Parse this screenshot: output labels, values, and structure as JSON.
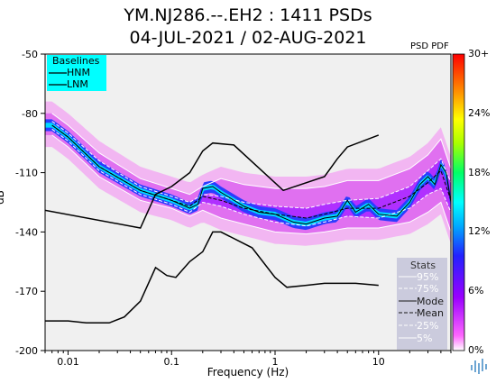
{
  "titles": {
    "line1": "YM.NJ286.--.EH2 : 1411 PSDs",
    "line2": "04-JUL-2021 / 02-AUG-2021"
  },
  "chart_data": {
    "type": "heatmap",
    "ylabel": "dB",
    "xlabel": "Frequency (Hz)",
    "pdf_label": "PSD PDF",
    "xscale": "log",
    "xlim": [
      0.006,
      50
    ],
    "ylim": [
      -200,
      -50
    ],
    "x_ticks": [
      {
        "v": 0.01,
        "label": "0.01"
      },
      {
        "v": 0.1,
        "label": "0.1"
      },
      {
        "v": 1,
        "label": "1"
      },
      {
        "v": 10,
        "label": "10"
      }
    ],
    "y_ticks": [
      {
        "v": -50,
        "label": "-50"
      },
      {
        "v": -80,
        "label": "-80"
      },
      {
        "v": -110,
        "label": "-110"
      },
      {
        "v": -140,
        "label": "-140"
      },
      {
        "v": -170,
        "label": "-170"
      },
      {
        "v": -200,
        "label": "-200"
      }
    ],
    "colorbar": {
      "ticks": [
        "30+",
        "24%",
        "18%",
        "12%",
        "6%",
        "0%"
      ]
    },
    "baselines": {
      "title": "Baselines",
      "hnm_label": "HNM",
      "lnm_label": "LNM",
      "hnm": [
        [
          0.006,
          -129
        ],
        [
          0.05,
          -138
        ],
        [
          0.07,
          -121
        ],
        [
          0.1,
          -117
        ],
        [
          0.15,
          -110
        ],
        [
          0.2,
          -99
        ],
        [
          0.25,
          -95
        ],
        [
          0.4,
          -96
        ],
        [
          1.2,
          -119
        ],
        [
          3,
          -112
        ],
        [
          4,
          -103
        ],
        [
          5,
          -97
        ],
        [
          10,
          -91
        ]
      ],
      "lnm": [
        [
          0.006,
          -185
        ],
        [
          0.01,
          -185
        ],
        [
          0.015,
          -186
        ],
        [
          0.025,
          -186
        ],
        [
          0.035,
          -183
        ],
        [
          0.05,
          -175
        ],
        [
          0.07,
          -158
        ],
        [
          0.09,
          -162
        ],
        [
          0.11,
          -163
        ],
        [
          0.15,
          -155
        ],
        [
          0.2,
          -150
        ],
        [
          0.25,
          -140
        ],
        [
          0.3,
          -140
        ],
        [
          0.6,
          -148
        ],
        [
          1,
          -163
        ],
        [
          1.3,
          -168
        ],
        [
          2,
          -167
        ],
        [
          3,
          -166
        ],
        [
          6,
          -166
        ],
        [
          10,
          -167
        ]
      ]
    },
    "stats": {
      "title": "Stats",
      "labels": [
        "95%",
        "75%",
        "Mode",
        "Mean",
        "25%",
        "5%"
      ],
      "p95": [
        [
          0.007,
          -80
        ],
        [
          0.01,
          -86
        ],
        [
          0.02,
          -100
        ],
        [
          0.05,
          -113
        ],
        [
          0.1,
          -118
        ],
        [
          0.15,
          -121
        ],
        [
          0.2,
          -117
        ],
        [
          0.3,
          -113
        ],
        [
          0.5,
          -116
        ],
        [
          1,
          -118
        ],
        [
          2,
          -118
        ],
        [
          3,
          -117
        ],
        [
          5,
          -114
        ],
        [
          10,
          -114
        ],
        [
          20,
          -108
        ],
        [
          30,
          -101
        ],
        [
          40,
          -93
        ],
        [
          50,
          -108
        ]
      ],
      "p75": [
        [
          0.007,
          -84
        ],
        [
          0.01,
          -90
        ],
        [
          0.02,
          -104
        ],
        [
          0.05,
          -117
        ],
        [
          0.1,
          -122
        ],
        [
          0.15,
          -125
        ],
        [
          0.2,
          -121
        ],
        [
          0.3,
          -122
        ],
        [
          0.5,
          -125
        ],
        [
          1,
          -127
        ],
        [
          2,
          -128
        ],
        [
          3,
          -126
        ],
        [
          5,
          -124
        ],
        [
          10,
          -123
        ],
        [
          20,
          -117
        ],
        [
          30,
          -109
        ],
        [
          40,
          -103
        ],
        [
          50,
          -115
        ]
      ],
      "mode": [
        [
          0.007,
          -86
        ],
        [
          0.01,
          -92
        ],
        [
          0.02,
          -107
        ],
        [
          0.05,
          -119
        ],
        [
          0.1,
          -124
        ],
        [
          0.15,
          -128
        ],
        [
          0.18,
          -126
        ],
        [
          0.2,
          -118
        ],
        [
          0.25,
          -117
        ],
        [
          0.3,
          -120
        ],
        [
          0.5,
          -127
        ],
        [
          0.7,
          -130
        ],
        [
          1,
          -131
        ],
        [
          1.5,
          -135
        ],
        [
          2,
          -136
        ],
        [
          3,
          -133
        ],
        [
          4,
          -132
        ],
        [
          5,
          -124
        ],
        [
          6,
          -130
        ],
        [
          8,
          -126
        ],
        [
          10,
          -131
        ],
        [
          15,
          -132
        ],
        [
          20,
          -125
        ],
        [
          25,
          -116
        ],
        [
          30,
          -112
        ],
        [
          35,
          -116
        ],
        [
          40,
          -106
        ],
        [
          45,
          -110
        ],
        [
          50,
          -125
        ]
      ],
      "mean": [
        [
          0.007,
          -86
        ],
        [
          0.01,
          -92
        ],
        [
          0.02,
          -107
        ],
        [
          0.05,
          -119
        ],
        [
          0.1,
          -124
        ],
        [
          0.15,
          -127
        ],
        [
          0.2,
          -122
        ],
        [
          0.3,
          -124
        ],
        [
          0.5,
          -128
        ],
        [
          1,
          -131
        ],
        [
          2,
          -133
        ],
        [
          3,
          -131
        ],
        [
          5,
          -128
        ],
        [
          10,
          -128
        ],
        [
          20,
          -122
        ],
        [
          30,
          -115
        ],
        [
          40,
          -109
        ],
        [
          50,
          -124
        ]
      ],
      "p25": [
        [
          0.007,
          -88
        ],
        [
          0.01,
          -94
        ],
        [
          0.02,
          -109
        ],
        [
          0.05,
          -121
        ],
        [
          0.1,
          -126
        ],
        [
          0.15,
          -130
        ],
        [
          0.2,
          -125
        ],
        [
          0.3,
          -127
        ],
        [
          0.5,
          -131
        ],
        [
          1,
          -135
        ],
        [
          2,
          -137
        ],
        [
          3,
          -135
        ],
        [
          5,
          -132
        ],
        [
          10,
          -133
        ],
        [
          20,
          -128
        ],
        [
          30,
          -121
        ],
        [
          40,
          -118
        ],
        [
          50,
          -130
        ]
      ],
      "p5": [
        [
          0.007,
          -91
        ],
        [
          0.01,
          -97
        ],
        [
          0.02,
          -112
        ],
        [
          0.05,
          -124
        ],
        [
          0.1,
          -128
        ],
        [
          0.15,
          -132
        ],
        [
          0.2,
          -129
        ],
        [
          0.3,
          -133
        ],
        [
          0.5,
          -136
        ],
        [
          1,
          -140
        ],
        [
          2,
          -141
        ],
        [
          3,
          -140
        ],
        [
          5,
          -138
        ],
        [
          10,
          -138
        ],
        [
          20,
          -135
        ],
        [
          30,
          -130
        ],
        [
          40,
          -125
        ],
        [
          50,
          -140
        ]
      ]
    }
  }
}
